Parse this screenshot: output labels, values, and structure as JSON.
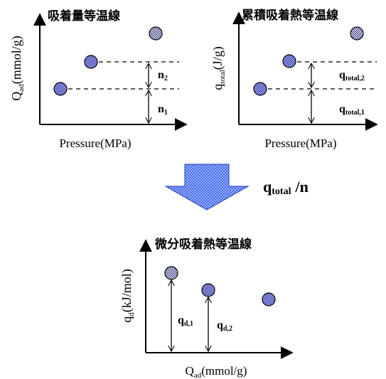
{
  "colors": {
    "ink": "#000000",
    "marker_fill": "#8f94ee",
    "marker_fill_dense": "#3b3f9a",
    "arrow_fill": "#3f66e8",
    "arrow_light": "#9fb3ff"
  },
  "panel_left": {
    "title": "吸着量等温線",
    "ylabel_main": "Q",
    "ylabel_sub": "ad",
    "ylabel_unit": "(mmol/g)",
    "xlabel": "Pressure(MPa)",
    "label_upper_main": "n",
    "label_upper_sub": "2",
    "label_lower_main": "n",
    "label_lower_sub": "1"
  },
  "panel_right": {
    "title": "累積吸着熱等温線",
    "ylabel_main": "q",
    "ylabel_sub": "total",
    "ylabel_unit": "(J/g)",
    "xlabel": "Pressure(MPa)",
    "label_upper_main": "q",
    "label_upper_sub": "total,2",
    "label_lower_main": "q",
    "label_lower_sub": "total,1"
  },
  "conversion": {
    "label_main": "q",
    "label_sub": "total",
    "label_tail": "/n",
    "arrow_icon": "down-arrow-icon"
  },
  "panel_bottom": {
    "title": "微分吸着熱等温線",
    "ylabel_main": "q",
    "ylabel_sub": "d",
    "ylabel_unit": "(kJ/mol)",
    "xlabel_main": "Q",
    "xlabel_sub": "ad",
    "xlabel_unit": "(mmol/g)",
    "label_1_main": "q",
    "label_1_sub": "d,1",
    "label_2_main": "q",
    "label_2_sub": "d,2"
  }
}
